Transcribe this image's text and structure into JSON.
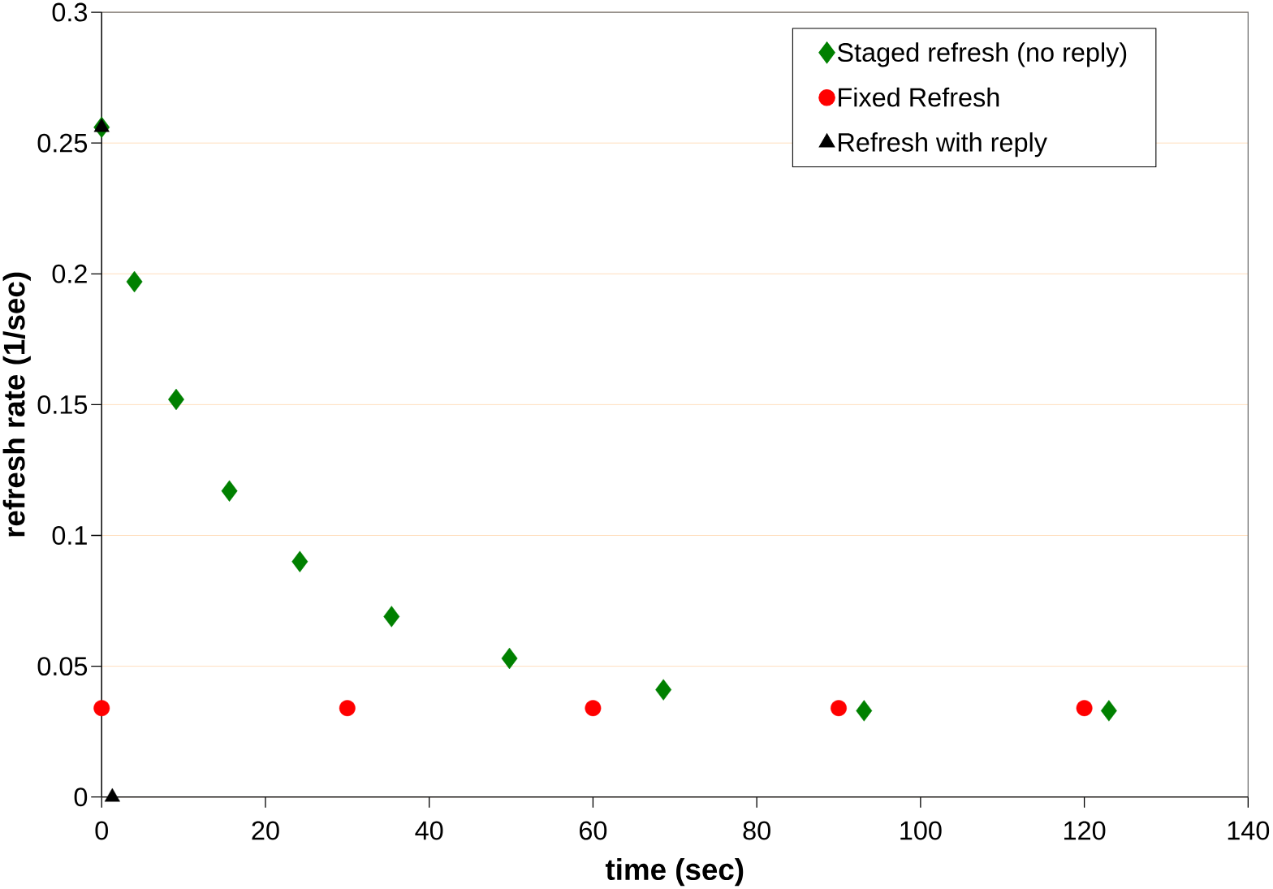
{
  "chart_data": {
    "type": "scatter",
    "xlabel": "time (sec)",
    "ylabel": "refresh rate (1/sec)",
    "xlim": [
      0,
      140
    ],
    "xticks": [
      0,
      20,
      40,
      60,
      80,
      100,
      120,
      140
    ],
    "ylim": [
      0,
      0.3
    ],
    "yticks": [
      0,
      0.05,
      0.1,
      0.15,
      0.2,
      0.25,
      0.3
    ],
    "grid": "y",
    "legend": "top right",
    "series": [
      {
        "name": "Staged refresh (no reply)",
        "color": "#008000",
        "marker": "diamond",
        "x": [
          0,
          4,
          9.1,
          15.6,
          24.2,
          35.4,
          49.8,
          68.6,
          93.1,
          123
        ],
        "values": [
          0.256,
          0.197,
          0.152,
          0.117,
          0.09,
          0.069,
          0.053,
          0.041,
          0.033,
          0.033
        ]
      },
      {
        "name": "Fixed Refresh",
        "color": "#ff0000",
        "marker": "circle",
        "x": [
          0,
          30,
          60,
          90,
          120
        ],
        "values": [
          0.034,
          0.034,
          0.034,
          0.034,
          0.034
        ]
      },
      {
        "name": "Refresh with reply",
        "color": "#000000",
        "marker": "triangle",
        "x": [
          0,
          1.3
        ],
        "values": [
          0.256,
          0
        ]
      }
    ]
  }
}
